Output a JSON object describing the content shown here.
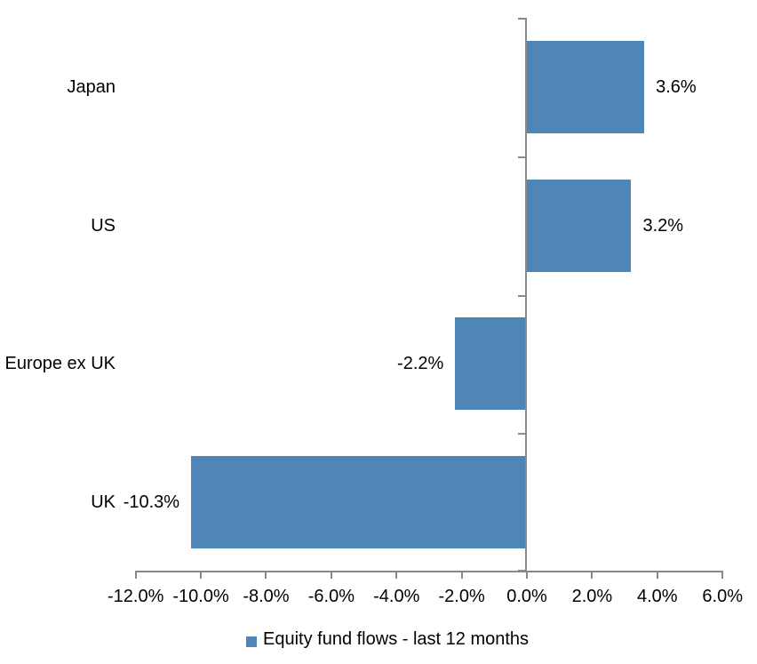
{
  "chart_data": {
    "type": "bar",
    "orientation": "horizontal",
    "title": "",
    "categories": [
      "Japan",
      "US",
      "Europe ex UK",
      "UK"
    ],
    "series": [
      {
        "name": "Equity fund flows - last 12 months",
        "values": [
          3.6,
          3.2,
          -2.2,
          -10.3
        ],
        "data_labels": [
          "3.6%",
          "3.2%",
          "-2.2%",
          "-10.3%"
        ]
      }
    ],
    "xlabel": "",
    "ylabel": "",
    "x_axis": {
      "min": -12.0,
      "max": 6.0,
      "step": 2.0,
      "tick_values": [
        -12,
        -10,
        -8,
        -6,
        -4,
        -2,
        0,
        2,
        4,
        6
      ],
      "tick_labels": [
        "-12.0%",
        "-10.0%",
        "-8.0%",
        "-6.0%",
        "-4.0%",
        "-2.0%",
        "0.0%",
        "2.0%",
        "4.0%",
        "6.0%"
      ]
    },
    "grid": false,
    "legend_position": "bottom",
    "legend_label": "Equity fund flows - last 12 months"
  },
  "colors": {
    "bar": "#4E86B8",
    "axis": "#898989",
    "text": "#000000",
    "background": "#FFFFFF"
  }
}
